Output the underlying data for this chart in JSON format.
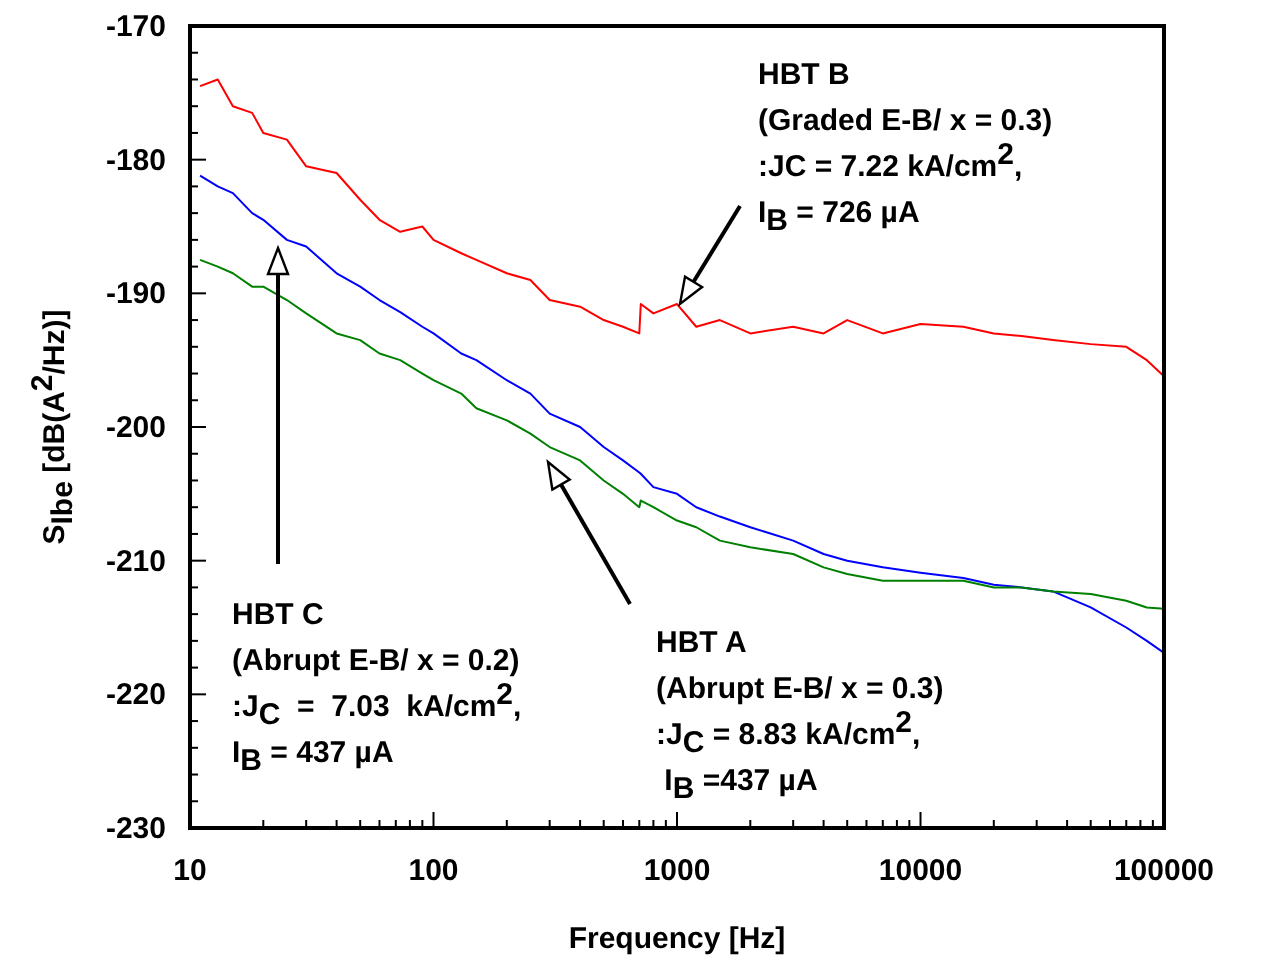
{
  "chart_data": {
    "type": "line",
    "xlabel": "Frequency [Hz]",
    "ylabel": "S$_{Ibe}$  [dB(A$^{2}$/Hz)]",
    "log": "x",
    "grid": false,
    "marker": "none",
    "line_style": "solid",
    "xlim": [
      10,
      100000
    ],
    "ylim": [
      -230,
      -170
    ],
    "xticks": [
      10,
      {
        "value": 20,
        "label": null
      },
      {
        "value": 30,
        "label": null
      },
      {
        "value": 40,
        "label": null
      },
      {
        "value": 50,
        "label": null
      },
      {
        "value": 60,
        "label": null
      },
      {
        "value": 70,
        "label": null
      },
      {
        "value": 80,
        "label": null
      },
      {
        "value": 90,
        "label": null
      },
      100,
      {
        "value": 200,
        "label": null
      },
      {
        "value": 300,
        "label": null
      },
      {
        "value": 400,
        "label": null
      },
      {
        "value": 500,
        "label": null
      },
      {
        "value": 600,
        "label": null
      },
      {
        "value": 700,
        "label": null
      },
      {
        "value": 800,
        "label": null
      },
      {
        "value": 900,
        "label": null
      },
      1000,
      {
        "value": 2000,
        "label": null
      },
      {
        "value": 3000,
        "label": null
      },
      {
        "value": 4000,
        "label": null
      },
      {
        "value": 5000,
        "label": null
      },
      {
        "value": 6000,
        "label": null
      },
      {
        "value": 7000,
        "label": null
      },
      {
        "value": 8000,
        "label": null
      },
      {
        "value": 9000,
        "label": null
      },
      10000,
      {
        "value": 20000,
        "label": null
      },
      {
        "value": 30000,
        "label": null
      },
      {
        "value": 40000,
        "label": null
      },
      {
        "value": 50000,
        "label": null
      },
      {
        "value": 60000,
        "label": null
      },
      {
        "value": 70000,
        "label": null
      },
      {
        "value": 80000,
        "label": null
      },
      {
        "value": 90000,
        "label": null
      },
      100000
    ],
    "yticks": [
      -230,
      {
        "value": -228,
        "label": null
      },
      {
        "value": -226,
        "label": null
      },
      {
        "value": -224,
        "label": null
      },
      {
        "value": -222,
        "label": null
      },
      -220,
      {
        "value": -218,
        "label": null
      },
      {
        "value": -216,
        "label": null
      },
      {
        "value": -214,
        "label": null
      },
      {
        "value": -212,
        "label": null
      },
      -210,
      {
        "value": -208,
        "label": null
      },
      {
        "value": -206,
        "label": null
      },
      {
        "value": -204,
        "label": null
      },
      {
        "value": -202,
        "label": null
      },
      -200,
      {
        "value": -198,
        "label": null
      },
      {
        "value": -196,
        "label": null
      },
      {
        "value": -194,
        "label": null
      },
      {
        "value": -192,
        "label": null
      },
      -190,
      {
        "value": -188,
        "label": null
      },
      {
        "value": -186,
        "label": null
      },
      {
        "value": -184,
        "label": null
      },
      {
        "value": -182,
        "label": null
      },
      -180,
      {
        "value": -178,
        "label": null
      },
      {
        "value": -176,
        "label": null
      },
      {
        "value": -174,
        "label": null
      },
      {
        "value": -172,
        "label": null
      },
      -170
    ],
    "x": [
      11,
      13,
      15,
      18,
      20,
      25,
      30,
      40,
      50,
      60,
      73,
      90,
      100,
      130,
      150,
      200,
      250,
      300,
      400,
      500,
      600,
      700,
      710,
      800,
      1000,
      1200,
      1500,
      2000,
      3000,
      4000,
      5000,
      7000,
      10000,
      15000,
      20000,
      26000,
      35000,
      50000,
      70000,
      85000,
      100000
    ],
    "series": [
      {
        "color": "#ff0000",
        "values": [
          -174.5,
          -174,
          -176,
          -176.5,
          -178,
          -178.5,
          -180.5,
          -181,
          -183,
          -184.5,
          -185.4,
          -185,
          -186,
          -187,
          -187.5,
          -188.5,
          -189,
          -190.5,
          -191,
          -192,
          -192.5,
          -193,
          -190.8,
          -191.5,
          -190.8,
          -192.5,
          -192,
          -193,
          -192.5,
          -193,
          -192,
          -193,
          -192.3,
          -192.5,
          -193,
          -193.2,
          -193.5,
          -193.8,
          -194,
          -195,
          -196.2
        ]
      },
      {
        "color": "#0000ff",
        "values": [
          -181.2,
          -182,
          -182.5,
          -184,
          -184.5,
          -186,
          -186.5,
          -188.5,
          -189.5,
          -190.5,
          -191.4,
          -192.5,
          -193,
          -194.5,
          -195,
          -196.5,
          -197.5,
          -199,
          -200,
          -201.5,
          -202.5,
          -203.4,
          -203.5,
          -204.5,
          -205,
          -206,
          -206.7,
          -207.5,
          -208.5,
          -209.5,
          -210,
          -210.5,
          -210.9,
          -211.3,
          -211.8,
          -212,
          -212.3,
          -213.5,
          -215,
          -216,
          -216.9
        ]
      },
      {
        "color": "#008000",
        "values": [
          -187.5,
          -188,
          -188.5,
          -189.5,
          -189.5,
          -190.5,
          -191.5,
          -193,
          -193.5,
          -194.5,
          -195,
          -196,
          -196.5,
          -197.5,
          -198.6,
          -199.5,
          -200.5,
          -201.5,
          -202.5,
          -204,
          -205,
          -206,
          -205.5,
          -206,
          -207,
          -207.5,
          -208.5,
          -209,
          -209.5,
          -210.5,
          -211,
          -211.5,
          -211.5,
          -211.5,
          -212,
          -212,
          -212.3,
          -212.5,
          -213,
          -213.5,
          -213.6
        ]
      }
    ],
    "annotations": [
      "HBT B",
      "(Graded E-B/ x = 0.3)",
      ":JC = 7.22 kA/cm$^{2}$,",
      "I$_{B}$ = 726 µA",
      "HBT C",
      "(Abrupt E-B/ x = 0.2)",
      ":J$_{C}$  =  7.03  kA/cm$^{2}$,",
      "I$_{B}$ = 437 µA",
      "HBT A",
      "(Abrupt E-B/ x = 0.3)",
      ":J$_{C}$ = 8.83 kA/cm$^{2}$,",
      " I$_{B}$ =437 µA"
    ]
  }
}
